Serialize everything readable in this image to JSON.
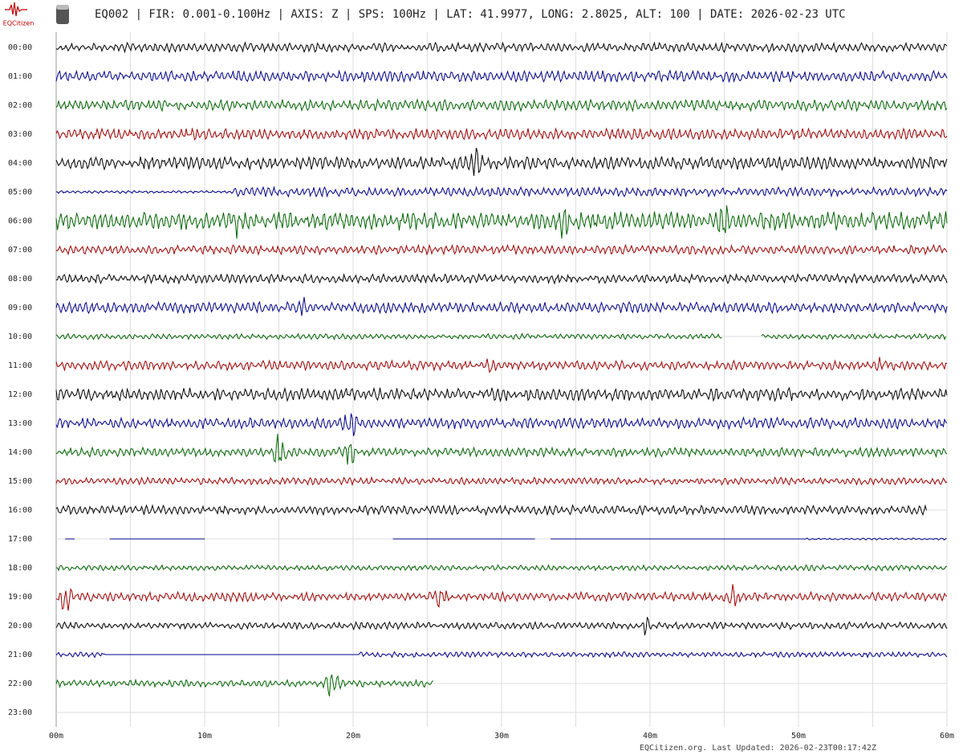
{
  "header": {
    "logo_text": "EQCitizen",
    "title": "EQ002 | FIR: 0.001-0.100Hz | AXIS: Z | SPS: 100Hz | LAT: 41.9977, LONG: 2.8025, ALT: 100 | DATE: 2026-02-23 UTC"
  },
  "helicorder": {
    "rows": [
      "00:00",
      "01:00",
      "02:00",
      "03:00",
      "04:00",
      "05:00",
      "06:00",
      "07:00",
      "08:00",
      "09:00",
      "10:00",
      "11:00",
      "12:00",
      "13:00",
      "14:00",
      "15:00",
      "16:00",
      "17:00",
      "18:00",
      "19:00",
      "20:00",
      "21:00",
      "22:00",
      "23:00"
    ],
    "trace_colors": [
      "#000000",
      "#00008b",
      "#006400",
      "#a00000"
    ],
    "xlim": [
      0,
      60
    ],
    "xticks": [
      {
        "value": 0,
        "label": "00m"
      },
      {
        "value": 10,
        "label": "10m"
      },
      {
        "value": 20,
        "label": "20m"
      },
      {
        "value": 30,
        "label": "30m"
      },
      {
        "value": 40,
        "label": "40m"
      },
      {
        "value": 50,
        "label": "50m"
      },
      {
        "value": 60,
        "label": "60m"
      }
    ]
  },
  "footer": {
    "text": "EQCitizen.org. Last Updated: 2026-02-23T00:17:42Z"
  }
}
